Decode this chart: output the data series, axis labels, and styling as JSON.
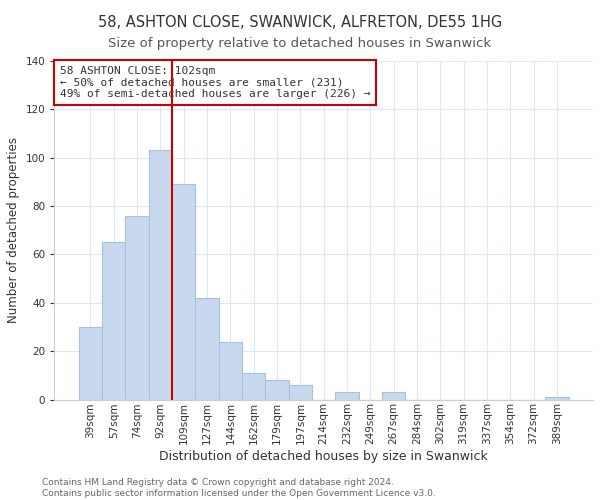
{
  "title": "58, ASHTON CLOSE, SWANWICK, ALFRETON, DE55 1HG",
  "subtitle": "Size of property relative to detached houses in Swanwick",
  "xlabel": "Distribution of detached houses by size in Swanwick",
  "ylabel": "Number of detached properties",
  "footer_line1": "Contains HM Land Registry data © Crown copyright and database right 2024.",
  "footer_line2": "Contains public sector information licensed under the Open Government Licence v3.0.",
  "bar_labels": [
    "39sqm",
    "57sqm",
    "74sqm",
    "92sqm",
    "109sqm",
    "127sqm",
    "144sqm",
    "162sqm",
    "179sqm",
    "197sqm",
    "214sqm",
    "232sqm",
    "249sqm",
    "267sqm",
    "284sqm",
    "302sqm",
    "319sqm",
    "337sqm",
    "354sqm",
    "372sqm",
    "389sqm"
  ],
  "bar_values": [
    30,
    65,
    76,
    103,
    89,
    42,
    24,
    11,
    8,
    6,
    0,
    3,
    0,
    3,
    0,
    0,
    0,
    0,
    0,
    0,
    1
  ],
  "bar_color": "#c8d9ef",
  "bar_edge_color": "#a8c0de",
  "vline_color": "#cc0000",
  "vline_x_index": 3,
  "annotation_title": "58 ASHTON CLOSE: 102sqm",
  "annotation_line1": "← 50% of detached houses are smaller (231)",
  "annotation_line2": "49% of semi-detached houses are larger (226) →",
  "annotation_box_edge": "#cc0000",
  "annotation_box_facecolor": "#ffffff",
  "ylim": [
    0,
    140
  ],
  "yticks": [
    0,
    20,
    40,
    60,
    80,
    100,
    120,
    140
  ],
  "bg_color": "#ffffff",
  "grid_color": "#dce8f5",
  "title_fontsize": 10.5,
  "subtitle_fontsize": 9.5,
  "xlabel_fontsize": 9,
  "ylabel_fontsize": 8.5,
  "tick_fontsize": 7.5,
  "annotation_fontsize": 8,
  "footer_fontsize": 6.5
}
